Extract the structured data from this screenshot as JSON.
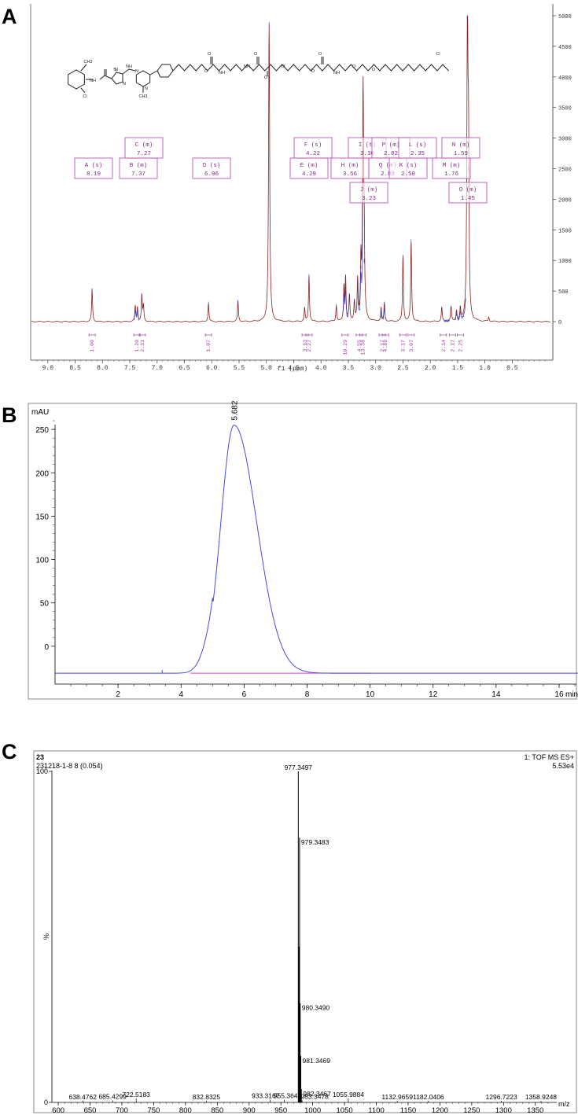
{
  "panels": [
    {
      "label": "A"
    },
    {
      "label": "B"
    },
    {
      "label": "C"
    }
  ],
  "chart_data": [
    {
      "type": "line",
      "panel": "A",
      "xlabel": "f1 (ppm)",
      "ylabel": "",
      "xlim": [
        9.3,
        -0.2
      ],
      "ylim": [
        -150,
        5100
      ],
      "x_ticks": [
        "9.0",
        "8.5",
        "8.0",
        "7.5",
        "7.0",
        "6.5",
        "6.0",
        "5.5",
        "5.0",
        "4.5",
        "4.0",
        "3.5",
        "3.0",
        "2.5",
        "2.0",
        "1.5",
        "1.0",
        "0.5"
      ],
      "y_ticks": [
        "0",
        "500",
        "1000",
        "1500",
        "2000",
        "2500",
        "3000",
        "3500",
        "4000",
        "4500",
        "5000"
      ],
      "peaks": [
        {
          "x": 8.19,
          "y": 520
        },
        {
          "x": 7.4,
          "y": 250
        },
        {
          "x": 7.36,
          "y": 230
        },
        {
          "x": 7.28,
          "y": 430
        },
        {
          "x": 7.25,
          "y": 250
        },
        {
          "x": 6.06,
          "y": 300
        },
        {
          "x": 5.52,
          "y": 330
        },
        {
          "x": 4.95,
          "y": 4870
        },
        {
          "x": 4.3,
          "y": 220
        },
        {
          "x": 4.22,
          "y": 750
        },
        {
          "x": 3.72,
          "y": 260
        },
        {
          "x": 3.58,
          "y": 550
        },
        {
          "x": 3.55,
          "y": 700
        },
        {
          "x": 3.48,
          "y": 420
        },
        {
          "x": 3.39,
          "y": 320
        },
        {
          "x": 3.33,
          "y": 650
        },
        {
          "x": 3.27,
          "y": 900
        },
        {
          "x": 3.23,
          "y": 3750
        },
        {
          "x": 3.21,
          "y": 1000
        },
        {
          "x": 2.9,
          "y": 220
        },
        {
          "x": 2.84,
          "y": 300
        },
        {
          "x": 2.5,
          "y": 1070
        },
        {
          "x": 2.35,
          "y": 1320
        },
        {
          "x": 1.79,
          "y": 230
        },
        {
          "x": 1.62,
          "y": 240
        },
        {
          "x": 1.52,
          "y": 170
        },
        {
          "x": 1.45,
          "y": 200
        },
        {
          "x": 1.32,
          "y": 4950
        },
        {
          "x": 1.3,
          "y": 2500
        },
        {
          "x": 0.93,
          "y": 70
        }
      ],
      "peak_labels": [
        {
          "name": "A (s)",
          "value": "8.19"
        },
        {
          "name": "B (m)",
          "value": "7.37"
        },
        {
          "name": "C (m)",
          "value": "7.27"
        },
        {
          "name": "D (s)",
          "value": "6.06"
        },
        {
          "name": "E (m)",
          "value": "4.29"
        },
        {
          "name": "F (s)",
          "value": "4.22"
        },
        {
          "name": "H (m)",
          "value": "3.56"
        },
        {
          "name": "I (t)",
          "value": "3.30"
        },
        {
          "name": "J (m)",
          "value": "3.23"
        },
        {
          "name": "P (m)",
          "value": "2.82"
        },
        {
          "name": "Q (m)",
          "value": "2.88"
        },
        {
          "name": "K (s)",
          "value": "2.50"
        },
        {
          "name": "L (s)",
          "value": "2.35"
        },
        {
          "name": "M (m)",
          "value": "1.76"
        },
        {
          "name": "N (m)",
          "value": "1.59"
        },
        {
          "name": "O (m)",
          "value": "1.45"
        }
      ],
      "integrals": [
        {
          "x": 8.19,
          "value": "1.00"
        },
        {
          "x": 7.37,
          "value": "1.20"
        },
        {
          "x": 7.27,
          "value": "2.11"
        },
        {
          "x": 6.06,
          "value": "1.07"
        },
        {
          "x": 4.29,
          "value": "3.13"
        },
        {
          "x": 4.22,
          "value": "2.27"
        },
        {
          "x": 3.56,
          "value": "10.29"
        },
        {
          "x": 3.3,
          "value": "4.55"
        },
        {
          "x": 3.23,
          "value": "13.38"
        },
        {
          "x": 2.88,
          "value": "2.17"
        },
        {
          "x": 2.82,
          "value": "4.89"
        },
        {
          "x": 2.5,
          "value": "3.17"
        },
        {
          "x": 2.35,
          "value": "3.07"
        },
        {
          "x": 1.76,
          "value": "2.14"
        },
        {
          "x": 1.59,
          "value": "2.17"
        },
        {
          "x": 1.45,
          "value": "2.25"
        }
      ],
      "colors": {
        "spectrum": "#8b2020",
        "box": "#b040b0"
      }
    },
    {
      "type": "line",
      "panel": "B",
      "ylabel": "mAU",
      "xlabel": "min",
      "xlim": [
        0,
        16.6
      ],
      "ylim": [
        -30,
        280
      ],
      "x_ticks": [
        "2",
        "4",
        "6",
        "8",
        "10",
        "12",
        "14",
        "16"
      ],
      "y_ticks": [
        "0",
        "50",
        "100",
        "150",
        "200",
        "250"
      ],
      "peak": {
        "retention_time": "5.682",
        "apex": 255
      },
      "colors": {
        "trace": "#4a4adf",
        "baseline": "#e040e0"
      }
    },
    {
      "type": "line",
      "panel": "C",
      "sample_id": "23",
      "sample_name": "231218-1-8 8 (0.054)",
      "mode": "1: TOF MS ES+",
      "intensity": "5.53e4",
      "ylabel": "%",
      "xlabel": "m/z",
      "xlim": [
        590,
        1380
      ],
      "ylim": [
        0,
        100
      ],
      "x_ticks": [
        "600",
        "650",
        "700",
        "750",
        "800",
        "850",
        "900",
        "950",
        "1000",
        "1050",
        "1100",
        "1150",
        "1200",
        "1250",
        "1300",
        "1350"
      ],
      "y_ticks": [
        "0",
        "100"
      ],
      "peaks": [
        {
          "x": 977.3497,
          "y": 100,
          "label": "977.3497"
        },
        {
          "x": 978.35,
          "y": 47
        },
        {
          "x": 979.3483,
          "y": 80,
          "label": "979.3483"
        },
        {
          "x": 980.349,
          "y": 30,
          "label": "980.3490"
        },
        {
          "x": 981.3469,
          "y": 14,
          "label": "981.3469"
        },
        {
          "x": 982.3467,
          "y": 4,
          "label": "982.3467"
        },
        {
          "x": 638.4762,
          "y": 0.5,
          "label": "638.4762"
        },
        {
          "x": 685.4299,
          "y": 0.6,
          "label": "685.4299"
        },
        {
          "x": 722.5183,
          "y": 1.2,
          "label": "722.5183"
        },
        {
          "x": 832.8325,
          "y": 0.5,
          "label": "832.8325"
        },
        {
          "x": 933.3167,
          "y": 0.8,
          "label": "933.3167"
        },
        {
          "x": 955.3645,
          "y": 0.8,
          "label": "955.3645"
        },
        {
          "x": 983.3478,
          "y": 0.6,
          "label": "983.3478"
        },
        {
          "x": 1055.9884,
          "y": 1.2,
          "label": "1055.9884"
        },
        {
          "x": 1132.9659,
          "y": 0.5,
          "label": "1132.9659"
        },
        {
          "x": 1182.0406,
          "y": 0.5,
          "label": "1182.0406"
        },
        {
          "x": 1296.7223,
          "y": 0.5,
          "label": "1296.7223"
        },
        {
          "x": 1358.9248,
          "y": 0.5,
          "label": "1358.9248"
        }
      ],
      "colors": {
        "trace": "#000000"
      }
    }
  ],
  "structure": {
    "labels": [
      "NH",
      "NH",
      "N",
      "N",
      "N",
      "N",
      "O",
      "NH",
      "NH",
      "O",
      "O",
      "NH",
      "Cl",
      "Cl",
      "CH3",
      "CH3",
      "S",
      "O",
      "O",
      "O",
      "O",
      "O",
      "O"
    ]
  }
}
